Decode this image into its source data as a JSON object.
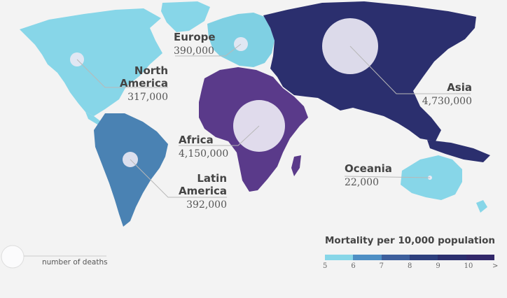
{
  "regions": [
    {
      "name_lines": [
        "Europe"
      ],
      "value": "390,000",
      "color": "#7fd0e3"
    },
    {
      "name_lines": [
        "North",
        "America"
      ],
      "value": "317,000",
      "color": "#87d6e8"
    },
    {
      "name_lines": [
        "Asia"
      ],
      "value": "4,730,000",
      "color": "#2b2f6e"
    },
    {
      "name_lines": [
        "Africa"
      ],
      "value": "4,150,000",
      "color": "#5a3a8a"
    },
    {
      "name_lines": [
        "Latin",
        "America"
      ],
      "value": "392,000",
      "color": "#4a82b3"
    },
    {
      "name_lines": [
        "Oceania"
      ],
      "value": "22,000",
      "color": "#87d6e8"
    }
  ],
  "legend": {
    "title": "Mortality per 10,000 population",
    "ticks": [
      "5",
      "6",
      "7",
      "8",
      "9",
      "10",
      ">"
    ],
    "colors": [
      "#87d6e8",
      "#4e8fc4",
      "#3d5f9c",
      "#2d3f7d",
      "#2b2f6e",
      "#32286a"
    ]
  },
  "size_key": {
    "label": "number of deaths"
  }
}
